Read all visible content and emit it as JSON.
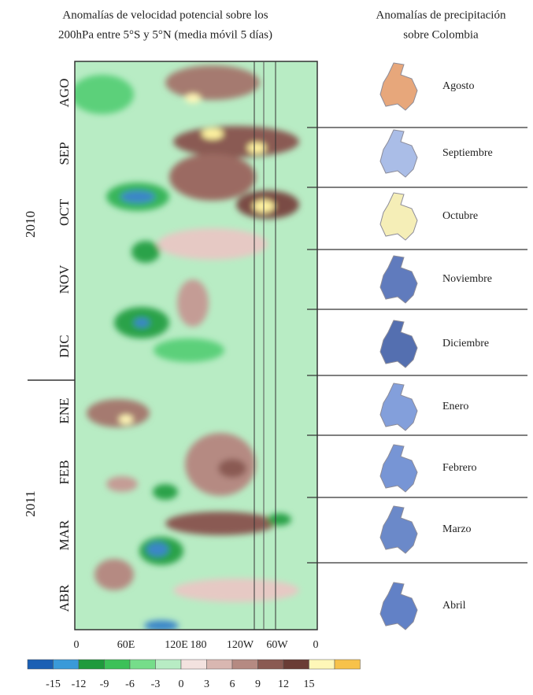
{
  "left_title": [
    "Anomalías de velocidad potencial sobre los",
    "200hPa entre 5°S y 5°N (media móvil 5 días)"
  ],
  "right_title": [
    "Anomalías de precipitación",
    "sobre Colombia"
  ],
  "months": [
    "AGO",
    "SEP",
    "OCT",
    "NOV",
    "DIC",
    "ENE",
    "FEB",
    "MAR",
    "ABR"
  ],
  "years": [
    "2010",
    "2011"
  ],
  "x_ticks": [
    "0",
    "60E",
    "120E",
    "180",
    "120W",
    "60W",
    "0"
  ],
  "colorbar_ticks": [
    -15,
    -12,
    -9,
    -6,
    -3,
    0,
    3,
    6,
    9,
    12,
    15
  ],
  "maps": [
    "Agosto",
    "Septiembre",
    "Octubre",
    "Noviembre",
    "Diciembre",
    "Enero",
    "Febrero",
    "Marzo",
    "Abril"
  ]
}
